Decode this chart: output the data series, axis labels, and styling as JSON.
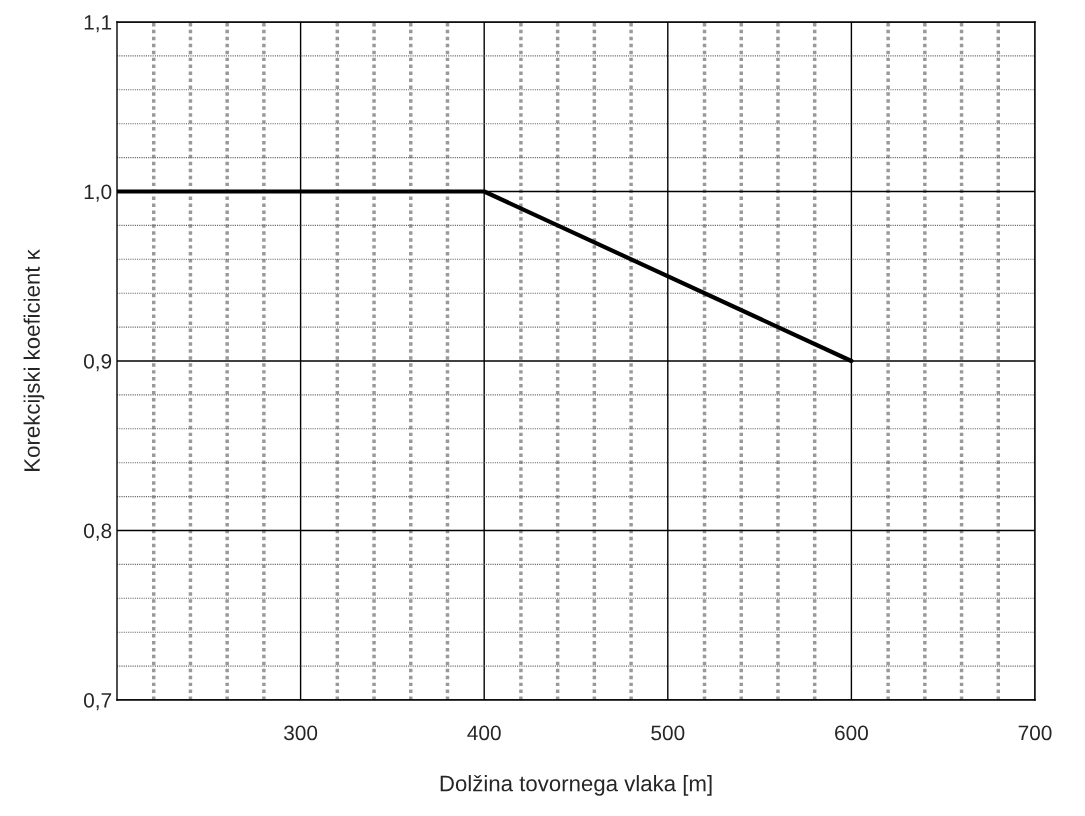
{
  "chart_data": {
    "type": "line",
    "xlabel": "Dolžina tovornega vlaka [m]",
    "ylabel": "Korekcijski koeficient κ",
    "x": [
      200,
      400,
      600
    ],
    "series": [
      {
        "color": "#000000",
        "values": [
          1.0,
          1.0,
          0.9
        ]
      }
    ],
    "xlim": [
      200,
      700
    ],
    "ylim": [
      0.7,
      1.1
    ],
    "xticks": [
      {
        "value": 220,
        "label": null
      },
      {
        "value": 240,
        "label": null
      },
      {
        "value": 260,
        "label": null
      },
      {
        "value": 280,
        "label": null
      },
      300,
      {
        "value": 320,
        "label": null
      },
      {
        "value": 340,
        "label": null
      },
      {
        "value": 360,
        "label": null
      },
      {
        "value": 380,
        "label": null
      },
      400,
      {
        "value": 420,
        "label": null
      },
      {
        "value": 440,
        "label": null
      },
      {
        "value": 460,
        "label": null
      },
      {
        "value": 480,
        "label": null
      },
      500,
      {
        "value": 520,
        "label": null
      },
      {
        "value": 540,
        "label": null
      },
      {
        "value": 560,
        "label": null
      },
      {
        "value": 580,
        "label": null
      },
      600,
      {
        "value": 620,
        "label": null
      },
      {
        "value": 640,
        "label": null
      },
      {
        "value": 660,
        "label": null
      },
      {
        "value": 680,
        "label": null
      },
      700
    ],
    "yticks": [
      {
        "value": 0.7,
        "label": "0,7"
      },
      {
        "value": 0.72,
        "label": null
      },
      {
        "value": 0.74,
        "label": null
      },
      {
        "value": 0.76,
        "label": null
      },
      {
        "value": 0.78,
        "label": null
      },
      {
        "value": 0.8,
        "label": "0,8"
      },
      {
        "value": 0.82,
        "label": null
      },
      {
        "value": 0.84,
        "label": null
      },
      {
        "value": 0.86,
        "label": null
      },
      {
        "value": 0.88,
        "label": null
      },
      {
        "value": 0.9,
        "label": "0,9"
      },
      {
        "value": 0.92,
        "label": null
      },
      {
        "value": 0.94,
        "label": null
      },
      {
        "value": 0.96,
        "label": null
      },
      {
        "value": 0.98,
        "label": null
      },
      {
        "value": 1.0,
        "label": "1,0"
      },
      {
        "value": 1.02,
        "label": null
      },
      {
        "value": 1.04,
        "label": null
      },
      {
        "value": 1.06,
        "label": null
      },
      {
        "value": 1.08,
        "label": null
      },
      {
        "value": 1.1,
        "label": "1,1"
      }
    ],
    "grid": true,
    "line_style": "solid",
    "marker": "none"
  }
}
